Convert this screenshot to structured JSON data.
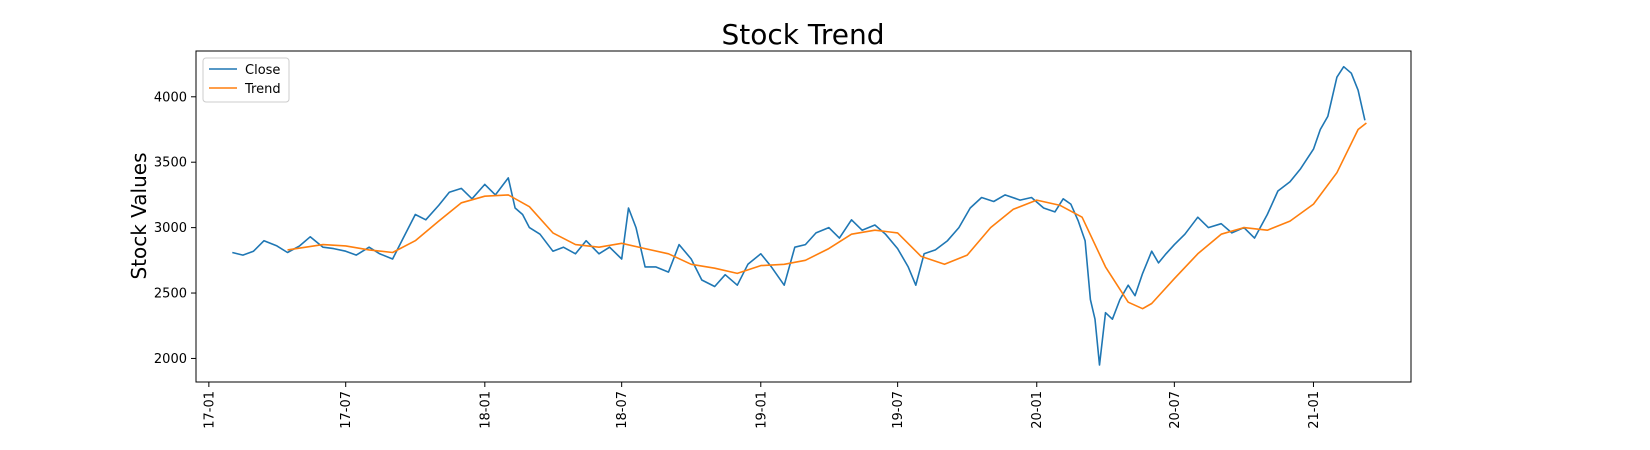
{
  "chart_data": {
    "type": "line",
    "title": "Stock Trend",
    "xlabel": "",
    "ylabel": "Stock Values",
    "x_ticks": [
      "17-01",
      "17-07",
      "18-01",
      "18-07",
      "19-01",
      "19-07",
      "20-01",
      "20-07",
      "21-01"
    ],
    "x_tick_dates": [
      "2017-01-01",
      "2017-07-01",
      "2018-01-01",
      "2018-07-01",
      "2019-01-01",
      "2019-07-01",
      "2020-01-01",
      "2020-07-01",
      "2021-01-01"
    ],
    "xlim": [
      "2016-12-15",
      "2021-05-10"
    ],
    "y_ticks": [
      2000,
      2500,
      3000,
      3500,
      4000
    ],
    "ylim": [
      1820,
      4350
    ],
    "grid": false,
    "legend_position": "top-left",
    "series": [
      {
        "name": "Close",
        "color": "#1f77b4",
        "points": [
          [
            "2017-02-01",
            2810
          ],
          [
            "2017-02-15",
            2790
          ],
          [
            "2017-03-01",
            2820
          ],
          [
            "2017-03-15",
            2900
          ],
          [
            "2017-04-01",
            2860
          ],
          [
            "2017-04-15",
            2810
          ],
          [
            "2017-05-01",
            2860
          ],
          [
            "2017-05-15",
            2930
          ],
          [
            "2017-06-01",
            2850
          ],
          [
            "2017-06-15",
            2840
          ],
          [
            "2017-07-01",
            2820
          ],
          [
            "2017-07-15",
            2790
          ],
          [
            "2017-08-01",
            2850
          ],
          [
            "2017-08-15",
            2800
          ],
          [
            "2017-09-01",
            2760
          ],
          [
            "2017-09-15",
            2920
          ],
          [
            "2017-10-01",
            3100
          ],
          [
            "2017-10-15",
            3060
          ],
          [
            "2017-11-01",
            3170
          ],
          [
            "2017-11-15",
            3270
          ],
          [
            "2017-12-01",
            3300
          ],
          [
            "2017-12-15",
            3220
          ],
          [
            "2018-01-01",
            3330
          ],
          [
            "2018-01-15",
            3250
          ],
          [
            "2018-02-01",
            3380
          ],
          [
            "2018-02-10",
            3150
          ],
          [
            "2018-02-20",
            3100
          ],
          [
            "2018-03-01",
            3000
          ],
          [
            "2018-03-15",
            2950
          ],
          [
            "2018-04-01",
            2820
          ],
          [
            "2018-04-15",
            2850
          ],
          [
            "2018-05-01",
            2800
          ],
          [
            "2018-05-15",
            2900
          ],
          [
            "2018-06-01",
            2800
          ],
          [
            "2018-06-15",
            2850
          ],
          [
            "2018-07-01",
            2760
          ],
          [
            "2018-07-10",
            3150
          ],
          [
            "2018-07-20",
            3000
          ],
          [
            "2018-08-01",
            2700
          ],
          [
            "2018-08-15",
            2700
          ],
          [
            "2018-09-01",
            2660
          ],
          [
            "2018-09-15",
            2870
          ],
          [
            "2018-10-01",
            2760
          ],
          [
            "2018-10-15",
            2600
          ],
          [
            "2018-11-01",
            2550
          ],
          [
            "2018-11-15",
            2640
          ],
          [
            "2018-12-01",
            2560
          ],
          [
            "2018-12-15",
            2720
          ],
          [
            "2019-01-01",
            2800
          ],
          [
            "2019-01-15",
            2700
          ],
          [
            "2019-02-01",
            2560
          ],
          [
            "2019-02-15",
            2850
          ],
          [
            "2019-03-01",
            2870
          ],
          [
            "2019-03-15",
            2960
          ],
          [
            "2019-04-01",
            3000
          ],
          [
            "2019-04-15",
            2920
          ],
          [
            "2019-05-01",
            3060
          ],
          [
            "2019-05-15",
            2980
          ],
          [
            "2019-06-01",
            3020
          ],
          [
            "2019-06-15",
            2950
          ],
          [
            "2019-07-01",
            2840
          ],
          [
            "2019-07-15",
            2700
          ],
          [
            "2019-07-25",
            2560
          ],
          [
            "2019-08-05",
            2800
          ],
          [
            "2019-08-20",
            2830
          ],
          [
            "2019-09-05",
            2900
          ],
          [
            "2019-09-20",
            3000
          ],
          [
            "2019-10-05",
            3150
          ],
          [
            "2019-10-20",
            3230
          ],
          [
            "2019-11-05",
            3200
          ],
          [
            "2019-11-20",
            3250
          ],
          [
            "2019-12-10",
            3210
          ],
          [
            "2019-12-25",
            3230
          ],
          [
            "2020-01-10",
            3150
          ],
          [
            "2020-01-25",
            3120
          ],
          [
            "2020-02-05",
            3220
          ],
          [
            "2020-02-15",
            3180
          ],
          [
            "2020-02-25",
            3050
          ],
          [
            "2020-03-05",
            2900
          ],
          [
            "2020-03-12",
            2450
          ],
          [
            "2020-03-18",
            2300
          ],
          [
            "2020-03-24",
            1950
          ],
          [
            "2020-04-01",
            2350
          ],
          [
            "2020-04-10",
            2300
          ],
          [
            "2020-04-20",
            2450
          ],
          [
            "2020-05-01",
            2560
          ],
          [
            "2020-05-10",
            2480
          ],
          [
            "2020-05-20",
            2650
          ],
          [
            "2020-06-01",
            2820
          ],
          [
            "2020-06-10",
            2730
          ],
          [
            "2020-06-20",
            2800
          ],
          [
            "2020-07-01",
            2870
          ],
          [
            "2020-07-15",
            2950
          ],
          [
            "2020-08-01",
            3080
          ],
          [
            "2020-08-15",
            3000
          ],
          [
            "2020-09-01",
            3030
          ],
          [
            "2020-09-15",
            2960
          ],
          [
            "2020-10-01",
            3000
          ],
          [
            "2020-10-15",
            2920
          ],
          [
            "2020-11-01",
            3100
          ],
          [
            "2020-11-15",
            3280
          ],
          [
            "2020-12-01",
            3350
          ],
          [
            "2020-12-15",
            3450
          ],
          [
            "2021-01-01",
            3600
          ],
          [
            "2021-01-10",
            3750
          ],
          [
            "2021-01-20",
            3850
          ],
          [
            "2021-02-01",
            4150
          ],
          [
            "2021-02-10",
            4230
          ],
          [
            "2021-02-20",
            4180
          ],
          [
            "2021-03-01",
            4050
          ],
          [
            "2021-03-10",
            3820
          ]
        ]
      },
      {
        "name": "Trend",
        "color": "#ff7f0e",
        "points": [
          [
            "2017-04-15",
            2830
          ],
          [
            "2017-06-01",
            2870
          ],
          [
            "2017-07-01",
            2860
          ],
          [
            "2017-08-01",
            2830
          ],
          [
            "2017-09-01",
            2810
          ],
          [
            "2017-10-01",
            2900
          ],
          [
            "2017-11-01",
            3050
          ],
          [
            "2017-12-01",
            3190
          ],
          [
            "2018-01-01",
            3240
          ],
          [
            "2018-02-01",
            3250
          ],
          [
            "2018-03-01",
            3160
          ],
          [
            "2018-04-01",
            2960
          ],
          [
            "2018-05-01",
            2870
          ],
          [
            "2018-06-01",
            2850
          ],
          [
            "2018-07-01",
            2880
          ],
          [
            "2018-08-01",
            2840
          ],
          [
            "2018-09-01",
            2800
          ],
          [
            "2018-10-01",
            2720
          ],
          [
            "2018-11-01",
            2690
          ],
          [
            "2018-12-01",
            2650
          ],
          [
            "2019-01-01",
            2710
          ],
          [
            "2019-02-01",
            2720
          ],
          [
            "2019-03-01",
            2750
          ],
          [
            "2019-04-01",
            2840
          ],
          [
            "2019-05-01",
            2950
          ],
          [
            "2019-06-01",
            2980
          ],
          [
            "2019-07-01",
            2960
          ],
          [
            "2019-08-01",
            2780
          ],
          [
            "2019-09-01",
            2720
          ],
          [
            "2019-10-01",
            2790
          ],
          [
            "2019-11-01",
            3000
          ],
          [
            "2019-12-01",
            3140
          ],
          [
            "2020-01-01",
            3210
          ],
          [
            "2020-02-01",
            3170
          ],
          [
            "2020-03-01",
            3080
          ],
          [
            "2020-04-01",
            2700
          ],
          [
            "2020-05-01",
            2430
          ],
          [
            "2020-05-20",
            2380
          ],
          [
            "2020-06-01",
            2420
          ],
          [
            "2020-07-01",
            2610
          ],
          [
            "2020-08-01",
            2800
          ],
          [
            "2020-09-01",
            2950
          ],
          [
            "2020-10-01",
            3000
          ],
          [
            "2020-11-01",
            2980
          ],
          [
            "2020-12-01",
            3050
          ],
          [
            "2021-01-01",
            3180
          ],
          [
            "2021-02-01",
            3420
          ],
          [
            "2021-03-01",
            3750
          ],
          [
            "2021-03-12",
            3800
          ]
        ]
      }
    ]
  }
}
